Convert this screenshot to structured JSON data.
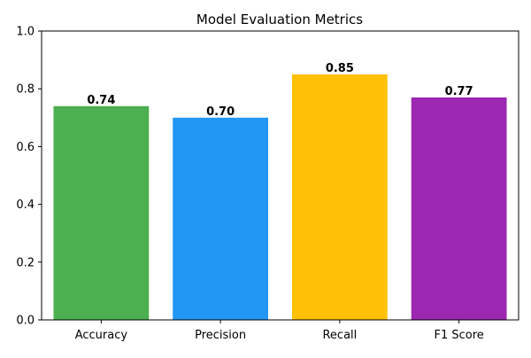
{
  "chart_data": {
    "type": "bar",
    "title": "Model Evaluation Metrics",
    "xlabel": "",
    "ylabel": "",
    "categories": [
      "Accuracy",
      "Precision",
      "Recall",
      "F1 Score"
    ],
    "values": [
      0.74,
      0.7,
      0.85,
      0.77
    ],
    "value_labels": [
      "0.74",
      "0.70",
      "0.85",
      "0.77"
    ],
    "colors": [
      "#4caf50",
      "#2196f3",
      "#ffc107",
      "#9c27b0"
    ],
    "ylim": [
      0,
      1.0
    ],
    "yticks": [
      0.0,
      0.2,
      0.4,
      0.6,
      0.8,
      1.0
    ],
    "ytick_labels": [
      "0.0",
      "0.2",
      "0.4",
      "0.6",
      "0.8",
      "1.0"
    ],
    "grid": false,
    "legend": "none"
  }
}
